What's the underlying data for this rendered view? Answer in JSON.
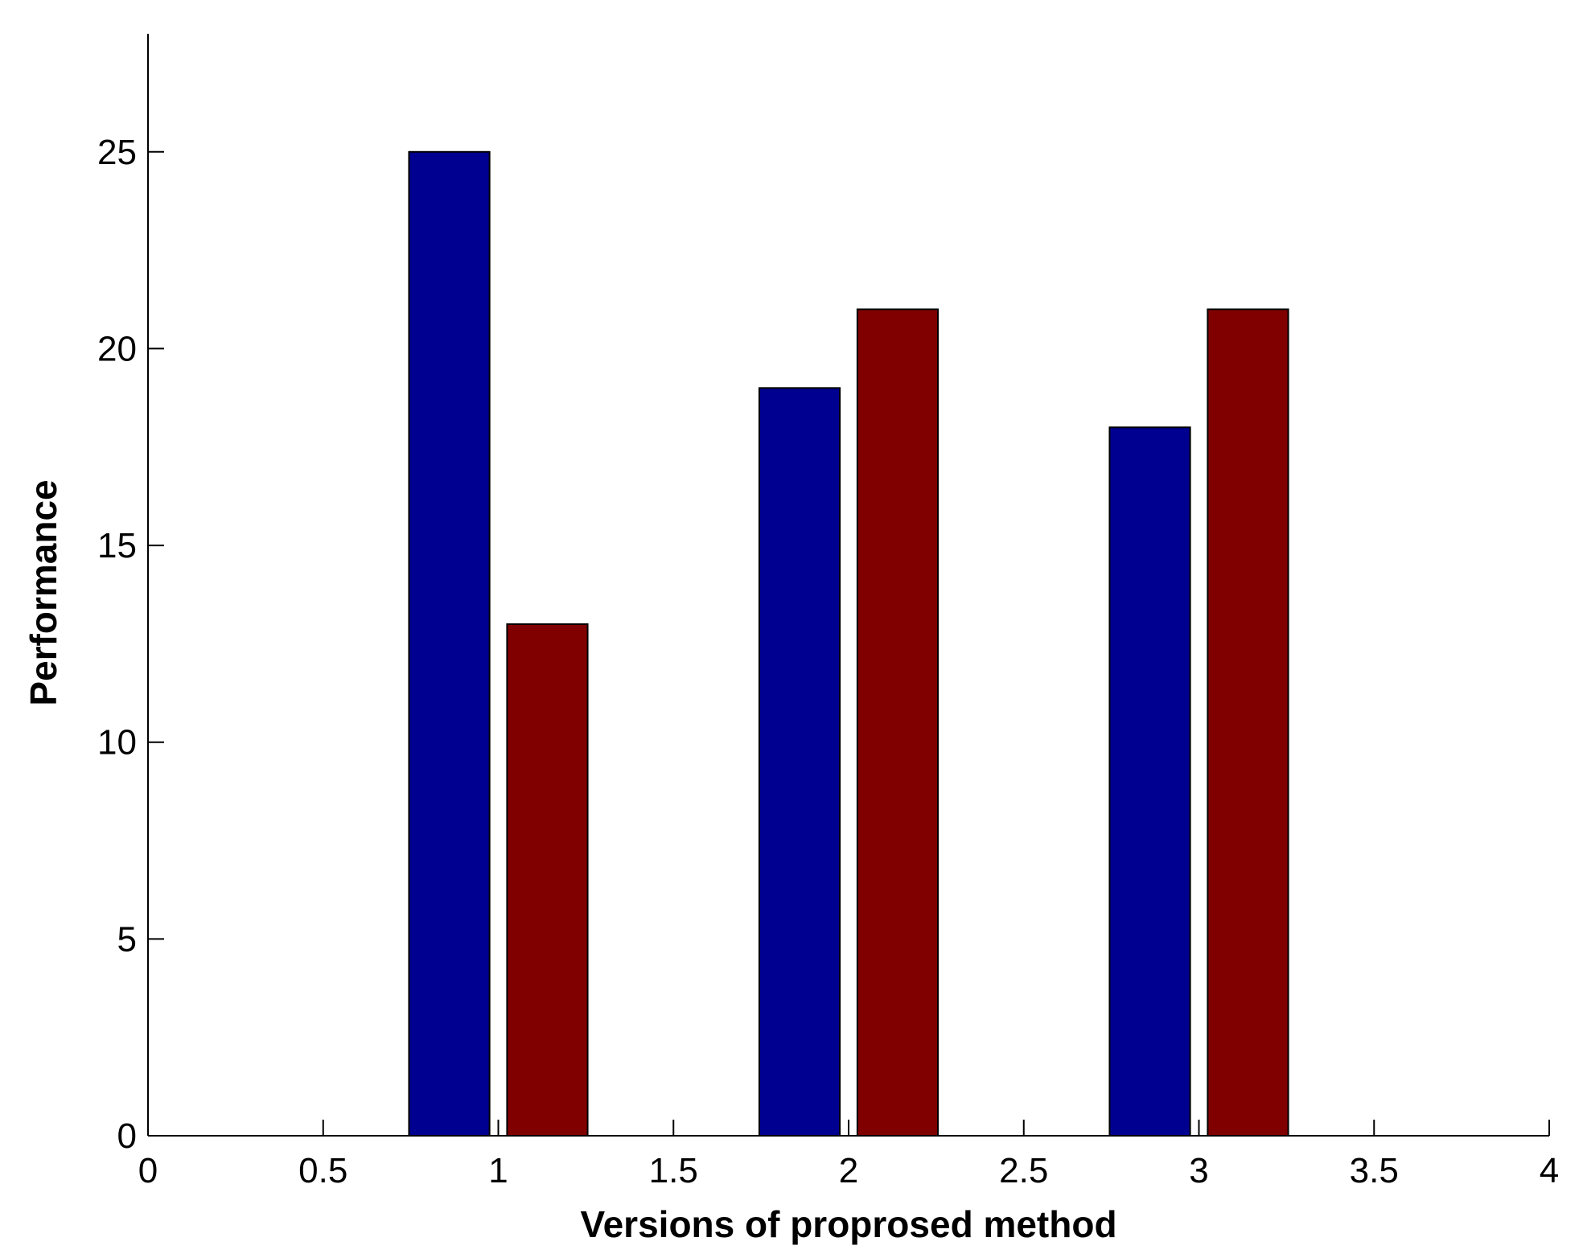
{
  "chart_data": {
    "type": "bar",
    "title": "",
    "xlabel": "Versions of proprosed method",
    "ylabel": "Performance",
    "xlim": [
      0,
      4
    ],
    "ylim": [
      0,
      28
    ],
    "x_ticks": [
      {
        "value": 0,
        "label": "0"
      },
      {
        "value": 0.5,
        "label": "0.5"
      },
      {
        "value": 1,
        "label": "1"
      },
      {
        "value": 1.5,
        "label": "1.5"
      },
      {
        "value": 2,
        "label": "2"
      },
      {
        "value": 2.5,
        "label": "2.5"
      },
      {
        "value": 3,
        "label": "3"
      },
      {
        "value": 3.5,
        "label": "3.5"
      },
      {
        "value": 4,
        "label": "4"
      }
    ],
    "y_ticks": [
      {
        "value": 0,
        "label": "0"
      },
      {
        "value": 5,
        "label": "5"
      },
      {
        "value": 10,
        "label": "10"
      },
      {
        "value": 15,
        "label": "15"
      },
      {
        "value": 20,
        "label": "20"
      },
      {
        "value": 25,
        "label": "25"
      }
    ],
    "x": [
      1,
      2,
      3
    ],
    "bar_width": 0.23,
    "group_offsets": [
      -0.14,
      0.14
    ],
    "series": [
      {
        "values": [
          25,
          19,
          18
        ],
        "color": "#000090"
      },
      {
        "values": [
          13,
          21,
          21
        ],
        "color": "#800000"
      }
    ],
    "grid": false,
    "legend": "none"
  }
}
